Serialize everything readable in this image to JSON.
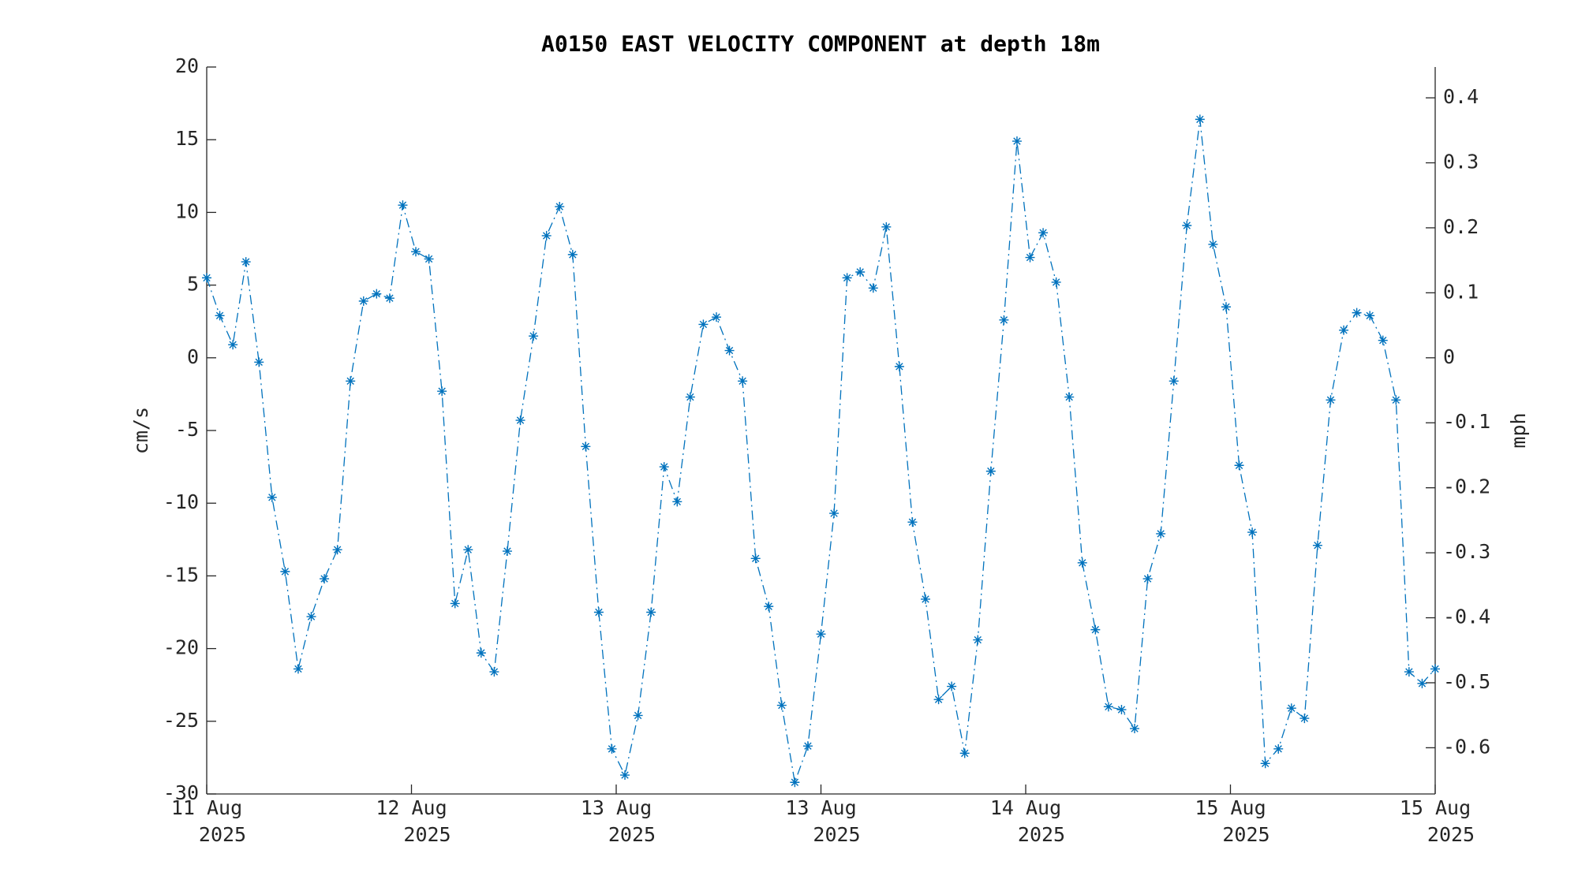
{
  "chart_data": {
    "type": "line",
    "title": "A0150 EAST VELOCITY COMPONENT at depth 18m",
    "ylabel": "cm/s",
    "y2label": "mph",
    "x": [
      0,
      1,
      2,
      3,
      4,
      5,
      6,
      7,
      8,
      9,
      10,
      11,
      12,
      13,
      14,
      15,
      16,
      17,
      18,
      19,
      20,
      21,
      22,
      23,
      24,
      25,
      26,
      27,
      28,
      29,
      30,
      31,
      32,
      33,
      34,
      35,
      36,
      37,
      38,
      39,
      40,
      41,
      42,
      43,
      44,
      45,
      46,
      47,
      48,
      49,
      50,
      51,
      52,
      53,
      54,
      55,
      56,
      57,
      58,
      59,
      60,
      61,
      62,
      63,
      64,
      65,
      66,
      67,
      68,
      69,
      70,
      71,
      72,
      73,
      74,
      75,
      76,
      77,
      78,
      79,
      80,
      81,
      82,
      83,
      84,
      85,
      86,
      87,
      88,
      89,
      90,
      91,
      92,
      93,
      94
    ],
    "series": [
      {
        "name": "East velocity",
        "color": "#0072bd",
        "values": [
          5.5,
          2.9,
          0.9,
          6.6,
          -0.3,
          -9.6,
          -14.7,
          -21.4,
          -17.8,
          -15.2,
          -13.2,
          -1.6,
          3.9,
          4.4,
          4.1,
          10.5,
          7.3,
          6.8,
          -2.3,
          -16.9,
          -13.2,
          -20.3,
          -21.6,
          -13.3,
          -4.3,
          1.5,
          8.4,
          10.4,
          7.1,
          -6.1,
          -17.5,
          -26.9,
          -28.7,
          -24.6,
          -17.5,
          -7.5,
          -9.9,
          -2.7,
          2.3,
          2.8,
          0.5,
          -1.6,
          -13.8,
          -17.1,
          -23.9,
          -29.2,
          -26.7,
          -19.0,
          -10.7,
          5.5,
          5.9,
          4.8,
          9.0,
          -0.6,
          -11.3,
          -16.6,
          -23.5,
          -22.6,
          -27.2,
          -19.4,
          -7.8,
          2.6,
          14.9,
          6.9,
          8.6,
          5.2,
          -2.7,
          -14.1,
          -18.7,
          -24.0,
          -24.2,
          -25.5,
          -15.2,
          -12.1,
          -1.6,
          9.1,
          16.4,
          7.8,
          3.5,
          -7.4,
          -12.0,
          -27.9,
          -26.9,
          -24.1,
          -24.8,
          -12.9,
          -2.9,
          1.9,
          3.1,
          2.9,
          1.2,
          -2.9,
          -21.6,
          -22.4,
          -21.4
        ]
      }
    ],
    "xlim": [
      0,
      94
    ],
    "xticks": [
      {
        "value": 0,
        "label": "11 Aug\n2025"
      },
      {
        "value": 15.667,
        "label": "12 Aug\n2025"
      },
      {
        "value": 31.333,
        "label": "13 Aug\n2025"
      },
      {
        "value": 47,
        "label": "13 Aug\n2025"
      },
      {
        "value": 62.667,
        "label": "14 Aug\n2025"
      },
      {
        "value": 78.333,
        "label": "15 Aug\n2025"
      },
      {
        "value": 94,
        "label": "15 Aug\n2025"
      }
    ],
    "ylim": [
      -30,
      20
    ],
    "yticks": [
      -30,
      -25,
      -20,
      -15,
      -10,
      -5,
      0,
      5,
      10,
      15,
      20
    ],
    "y2lim": [
      -0.6711,
      0.4474
    ],
    "y2ticks": [
      -0.6,
      -0.5,
      -0.4,
      -0.3,
      -0.2,
      -0.1,
      0,
      0.1,
      0.2,
      0.3,
      0.4
    ],
    "grid": false
  }
}
